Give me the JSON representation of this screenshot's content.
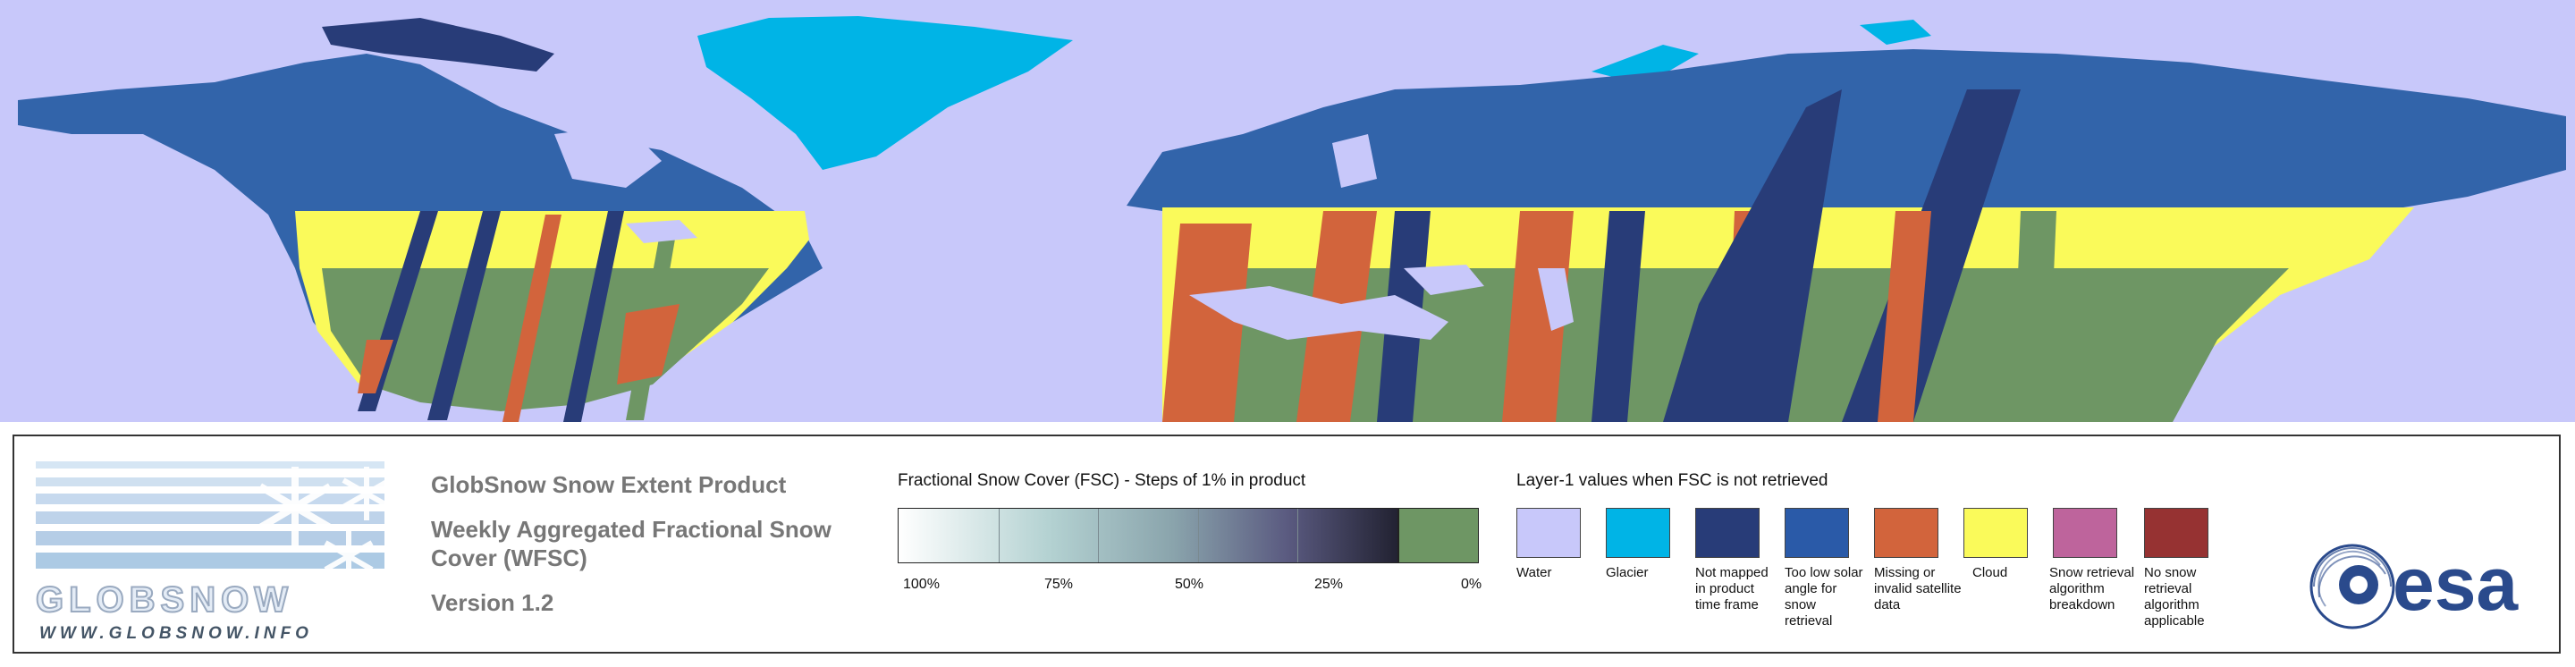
{
  "colors": {
    "water": "#c8c8fa",
    "glacier": "#00b4e6",
    "not_mapped": "#283c78",
    "low_sun": "#2a5aa8",
    "missing": "#d2643c",
    "cloud": "#fafa5a",
    "algo_breakdown": "#be649c",
    "not_applicable": "#963232",
    "no_snow": "#6e9664",
    "land_blue": "#3264aa"
  },
  "logo": {
    "wordmark": "GLOBSNOW",
    "url": "WWW.GLOBSNOW.INFO"
  },
  "product": {
    "name": "GlobSnow Snow Extent Product",
    "subtitle": "Weekly Aggregated Fractional Snow Cover (WFSC)",
    "version": "Version 1.2"
  },
  "fsc": {
    "title": "Fractional Snow Cover (FSC) - Steps of 1% in product",
    "ticks": [
      "100%",
      "75%",
      "50%",
      "25%",
      "0%"
    ]
  },
  "layer1": {
    "title": "Layer-1 values when FSC is not retrieved",
    "categories": [
      {
        "label": "Water",
        "color": "#c8c8fa"
      },
      {
        "label": "Glacier",
        "color": "#00b4e6"
      },
      {
        "label": "Not mapped in product time frame",
        "color": "#283c78"
      },
      {
        "label": "Too low solar angle for snow retrieval",
        "color": "#2a5aa8"
      },
      {
        "label": "Missing or invalid satellite data",
        "color": "#d2643c"
      },
      {
        "label": "Cloud",
        "color": "#fafa5a"
      },
      {
        "label": "Snow retrieval algorithm breakdown",
        "color": "#be649c"
      },
      {
        "label": "No snow retrieval algorithm applicable",
        "color": "#963232"
      }
    ]
  },
  "esa": {
    "wordmark": "esa"
  }
}
